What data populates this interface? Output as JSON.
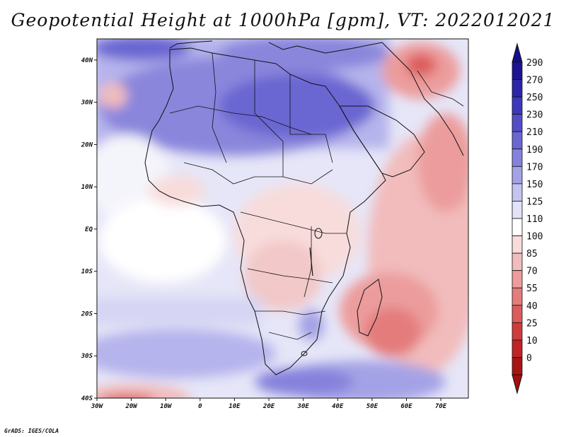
{
  "title": "Geopotential Height at 1000hPa [gpm], VT: 2022012021",
  "credit": "GrADS: IGES/COLA",
  "map": {
    "variable": "Geopotential Height",
    "level": "1000hPa",
    "units": "gpm",
    "valid_time": "2022012021",
    "lon_range": [
      -30,
      78
    ],
    "lat_range": [
      -40,
      45
    ],
    "lat_ticks": [
      {
        "value": 40,
        "label": "40N"
      },
      {
        "value": 30,
        "label": "30N"
      },
      {
        "value": 20,
        "label": "20N"
      },
      {
        "value": 10,
        "label": "10N"
      },
      {
        "value": 0,
        "label": "EQ"
      },
      {
        "value": -10,
        "label": "10S"
      },
      {
        "value": -20,
        "label": "20S"
      },
      {
        "value": -30,
        "label": "30S"
      },
      {
        "value": -40,
        "label": "40S"
      }
    ],
    "lon_ticks": [
      {
        "value": -30,
        "label": "30W"
      },
      {
        "value": -20,
        "label": "20W"
      },
      {
        "value": -10,
        "label": "10W"
      },
      {
        "value": 0,
        "label": "0"
      },
      {
        "value": 10,
        "label": "10E"
      },
      {
        "value": 20,
        "label": "20E"
      },
      {
        "value": 30,
        "label": "30E"
      },
      {
        "value": 40,
        "label": "40E"
      },
      {
        "value": 50,
        "label": "50E"
      },
      {
        "value": 60,
        "label": "60E"
      },
      {
        "value": 70,
        "label": "70E"
      }
    ]
  },
  "colorbar": {
    "levels": [
      "290",
      "270",
      "250",
      "230",
      "210",
      "190",
      "170",
      "150",
      "125",
      "110",
      "100",
      "85",
      "70",
      "55",
      "40",
      "25",
      "10",
      "0"
    ],
    "colors": [
      "#1c1490",
      "#2c26a8",
      "#3c38bc",
      "#524ec8",
      "#6a66d2",
      "#8682dc",
      "#a4a2e6",
      "#c4c4f0",
      "#e2e2f8",
      "#ffffff",
      "#f8dcdc",
      "#f2bcbc",
      "#ec9c9c",
      "#e47c7c",
      "#dc5c5c",
      "#d03c3c",
      "#c02424",
      "#a81414"
    ],
    "top_color": "#14108a",
    "bottom_color": "#a40e0e"
  }
}
